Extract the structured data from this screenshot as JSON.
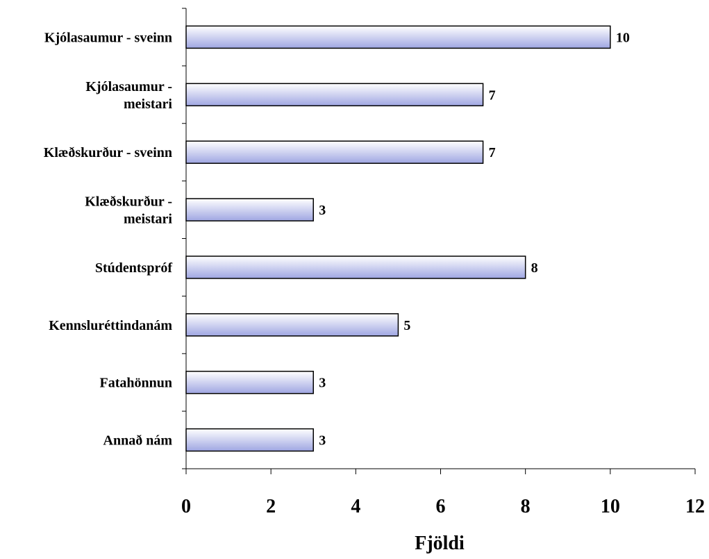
{
  "chart_data": {
    "type": "bar",
    "orientation": "horizontal",
    "categories": [
      "Kjólasaumur - sveinn",
      "Kjólasaumur - meistari",
      "Klæðskurður - sveinn",
      "Klæðskurður - meistari",
      "Stúdentspróf",
      "Kennsluréttindanám",
      "Fatahönnun",
      "Annað nám"
    ],
    "category_lines": [
      [
        "Kjólasaumur - sveinn"
      ],
      [
        "Kjólasaumur -",
        "meistari"
      ],
      [
        "Klæðskurður - sveinn"
      ],
      [
        "Klæðskurður -",
        "meistari"
      ],
      [
        "Stúdentspróf"
      ],
      [
        "Kennsluréttindanám"
      ],
      [
        "Fatahönnun"
      ],
      [
        "Annað nám"
      ]
    ],
    "values": [
      10,
      7,
      7,
      3,
      8,
      5,
      3,
      3
    ],
    "data_labels": [
      "10",
      "7",
      "7",
      "3",
      "8",
      "5",
      "3",
      "3"
    ],
    "xlabel": "Fjöldi",
    "ylabel": "",
    "xlim": [
      0,
      12
    ],
    "xticks": [
      0,
      2,
      4,
      6,
      8,
      10,
      12
    ],
    "xtick_labels": [
      "0",
      "2",
      "4",
      "6",
      "8",
      "10",
      "12"
    ],
    "grid": false,
    "legend": "none",
    "colors": {
      "bar_top": "#ffffff",
      "bar_bottom": "#9fa6e2",
      "bar_stroke": "#000000",
      "axis": "#000000"
    }
  }
}
